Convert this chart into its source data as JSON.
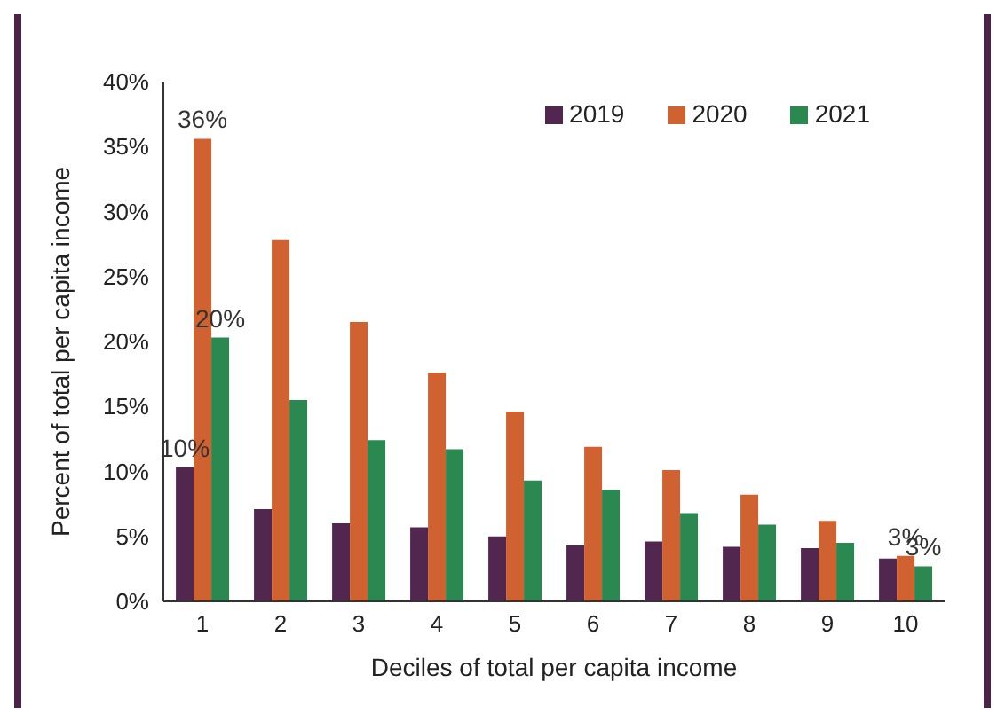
{
  "chart_data": {
    "type": "bar",
    "xlabel": "Deciles of total per capita income",
    "ylabel": "Percent of total per capita income",
    "categories": [
      "1",
      "2",
      "3",
      "4",
      "5",
      "6",
      "7",
      "8",
      "9",
      "10"
    ],
    "series": [
      {
        "name": "2019",
        "color": "#52274f",
        "values": [
          10.3,
          7.1,
          6.0,
          5.7,
          5.0,
          4.3,
          4.6,
          4.2,
          4.1,
          3.3
        ],
        "value_labels": [
          "10%",
          null,
          null,
          null,
          null,
          null,
          null,
          null,
          null,
          null
        ]
      },
      {
        "name": "2020",
        "color": "#d06130",
        "values": [
          35.6,
          27.8,
          21.5,
          17.6,
          14.6,
          11.9,
          10.1,
          8.2,
          6.2,
          3.5
        ],
        "value_labels": [
          "36%",
          null,
          null,
          null,
          null,
          null,
          null,
          null,
          null,
          "3%"
        ]
      },
      {
        "name": "2021",
        "color": "#2b8850",
        "values": [
          20.3,
          15.5,
          12.4,
          11.7,
          9.3,
          8.6,
          6.8,
          5.9,
          4.5,
          2.7
        ],
        "value_labels": [
          "20%",
          null,
          null,
          null,
          null,
          null,
          null,
          null,
          null,
          "3%"
        ]
      }
    ],
    "ylim": [
      0,
      40
    ],
    "yticks": [
      {
        "value": 0,
        "label": "0%"
      },
      {
        "value": 5,
        "label": "5%"
      },
      {
        "value": 10,
        "label": "10%"
      },
      {
        "value": 15,
        "label": "15%"
      },
      {
        "value": 20,
        "label": "20%"
      },
      {
        "value": 25,
        "label": "25%"
      },
      {
        "value": 30,
        "label": "30%"
      },
      {
        "value": 35,
        "label": "35%"
      },
      {
        "value": 40,
        "label": "40%"
      }
    ],
    "grid": false,
    "legend": "top right"
  }
}
